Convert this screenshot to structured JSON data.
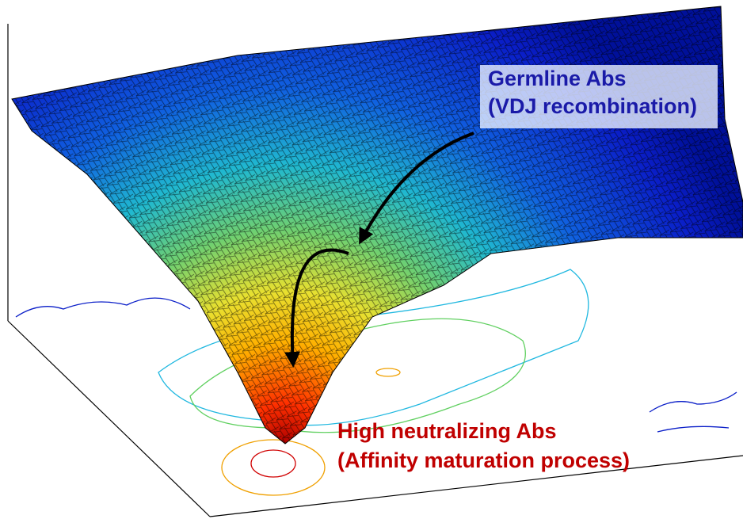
{
  "labels": {
    "germline": {
      "title": "Germline Abs",
      "subtitle": "(VDJ recombination)"
    },
    "neutralizing": {
      "title": "High neutralizing Abs",
      "subtitle": "(Affinity maturation process)"
    }
  }
}
